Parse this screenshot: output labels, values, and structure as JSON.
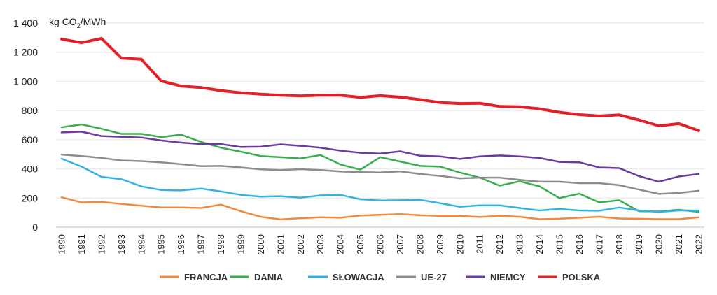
{
  "chart_data": {
    "type": "line",
    "ylabel": "kg CO2/MWh",
    "ylabel_parts": {
      "main": "kg CO",
      "sub": "2",
      "rest": "/MWh"
    },
    "ylim": [
      0,
      1400
    ],
    "yticks": [
      0,
      200,
      400,
      600,
      800,
      1000,
      1200,
      1400
    ],
    "ytick_labels": [
      "0",
      "200",
      "400",
      "600",
      "800",
      "1 000",
      "1 200",
      "1 400"
    ],
    "grid": true,
    "legend_position": "bottom",
    "x": [
      "1990",
      "1991",
      "1992",
      "1993",
      "1994",
      "1995",
      "1996",
      "1997",
      "1998",
      "1999",
      "2000",
      "2001",
      "2002",
      "2003",
      "2004",
      "2005",
      "2006",
      "2007",
      "2008",
      "2009",
      "2010",
      "2011",
      "2012",
      "2013",
      "2014",
      "2015",
      "2016",
      "2017",
      "2018",
      "2019",
      "2020",
      "2021",
      "2022"
    ],
    "series": [
      {
        "name": "FRANCJA",
        "color": "#ef8a3f",
        "width": 2.5,
        "values": [
          205,
          170,
          173,
          160,
          147,
          135,
          135,
          132,
          155,
          110,
          72,
          53,
          62,
          68,
          65,
          80,
          85,
          90,
          82,
          78,
          78,
          70,
          78,
          72,
          55,
          58,
          65,
          72,
          60,
          58,
          55,
          55,
          68
        ]
      },
      {
        "name": "DANIA",
        "color": "#3aae4f",
        "width": 2.5,
        "values": [
          685,
          705,
          675,
          640,
          640,
          618,
          635,
          585,
          545,
          518,
          488,
          480,
          472,
          495,
          430,
          395,
          480,
          450,
          420,
          415,
          375,
          340,
          285,
          315,
          280,
          200,
          230,
          170,
          185,
          110,
          108,
          120,
          105
        ]
      },
      {
        "name": "SŁOWACJA",
        "color": "#35b1e3",
        "width": 2.5,
        "values": [
          470,
          415,
          345,
          330,
          280,
          255,
          252,
          265,
          245,
          222,
          210,
          213,
          203,
          218,
          222,
          192,
          183,
          185,
          188,
          165,
          140,
          150,
          150,
          132,
          115,
          125,
          115,
          113,
          135,
          115,
          105,
          115,
          115
        ]
      },
      {
        "name": "UE-27",
        "color": "#8c8c8c",
        "width": 2.5,
        "values": [
          498,
          488,
          475,
          458,
          453,
          445,
          432,
          418,
          420,
          410,
          397,
          392,
          398,
          392,
          382,
          378,
          375,
          383,
          365,
          352,
          335,
          340,
          340,
          325,
          312,
          312,
          302,
          302,
          288,
          258,
          228,
          235,
          250
        ]
      },
      {
        "name": "NIEMCY",
        "color": "#6a3aa0",
        "width": 2.5,
        "values": [
          650,
          655,
          625,
          620,
          615,
          595,
          580,
          570,
          570,
          550,
          552,
          568,
          558,
          545,
          525,
          510,
          505,
          520,
          490,
          485,
          468,
          485,
          492,
          485,
          475,
          448,
          445,
          410,
          405,
          350,
          312,
          348,
          365
        ]
      },
      {
        "name": "POLSKA",
        "color": "#e32027",
        "width": 4,
        "values": [
          1290,
          1265,
          1295,
          1160,
          1152,
          1003,
          968,
          958,
          937,
          922,
          912,
          905,
          900,
          905,
          905,
          890,
          902,
          892,
          875,
          855,
          848,
          850,
          828,
          826,
          812,
          788,
          772,
          763,
          770,
          735,
          695,
          710,
          662
        ]
      }
    ]
  }
}
